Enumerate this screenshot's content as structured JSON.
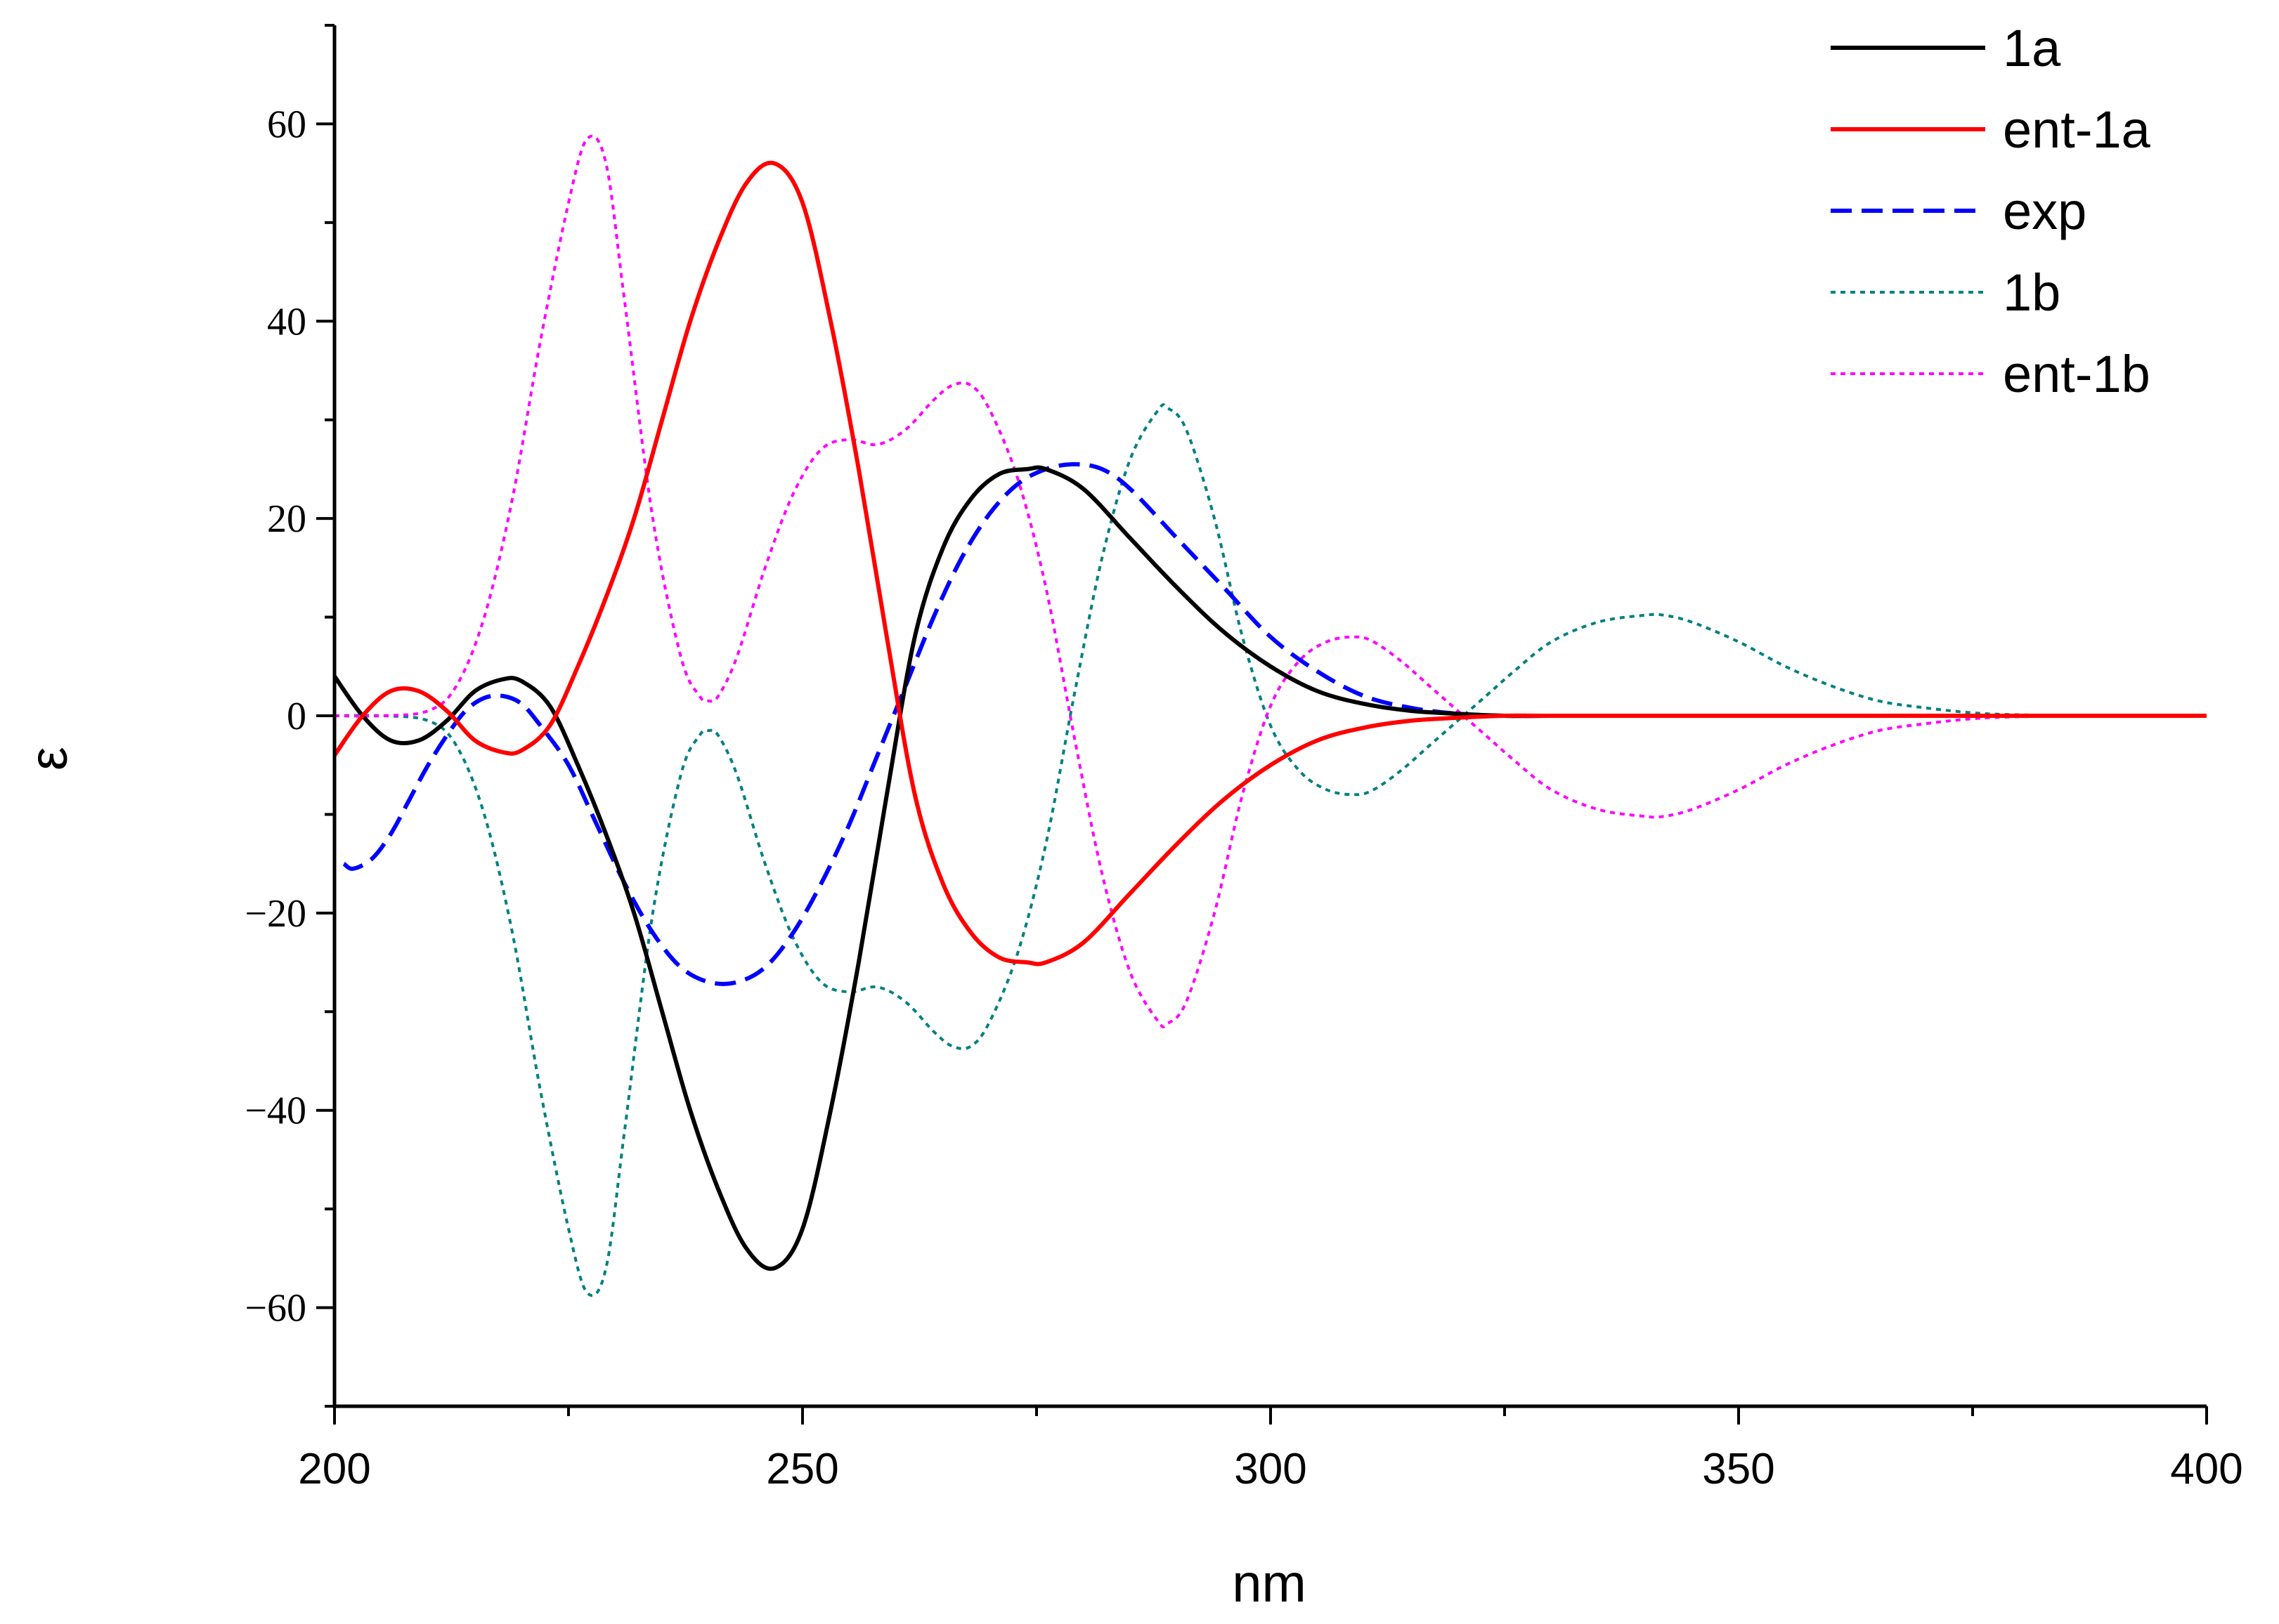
{
  "chart_data": {
    "type": "line",
    "title": "",
    "xlabel": "nm",
    "ylabel": "ε",
    "xlim": [
      200,
      400
    ],
    "ylim": [
      -70,
      70
    ],
    "xticks": [
      200,
      250,
      300,
      350,
      400
    ],
    "xtick_labels": [
      "200",
      "250",
      "300",
      "350",
      "400"
    ],
    "yticks": [
      -60,
      -40,
      -20,
      0,
      20,
      40,
      60
    ],
    "ytick_labels": [
      "−60",
      "−40",
      "−20",
      "0",
      "20",
      "40",
      "60"
    ],
    "grid": false,
    "legend_position": "top-right",
    "series": [
      {
        "name": "1a",
        "color": "#000000",
        "style": "solid",
        "x": [
          200,
          203,
          206,
          209,
          212,
          215,
          218,
          220,
          223,
          226,
          229,
          232,
          235,
          238,
          241,
          244,
          247,
          250,
          253,
          256,
          259,
          262,
          265,
          268,
          271,
          274,
          276,
          280,
          285,
          290,
          295,
          300,
          305,
          310,
          315,
          320,
          325,
          330,
          340,
          350,
          370,
          400
        ],
        "y": [
          4,
          0,
          -2.5,
          -2.5,
          -0.5,
          2.5,
          3.7,
          3.5,
          1,
          -5,
          -12,
          -20,
          -30,
          -40,
          -48,
          -54,
          -56,
          -52,
          -40,
          -25,
          -8,
          8,
          17,
          22,
          24.5,
          25,
          25,
          23,
          18,
          13,
          8.5,
          5,
          2.5,
          1.2,
          0.5,
          0.2,
          0,
          0,
          0,
          0,
          0,
          0
        ]
      },
      {
        "name": "ent-1a",
        "color": "#ff0000",
        "style": "solid",
        "x": [
          200,
          203,
          206,
          209,
          212,
          215,
          218,
          220,
          223,
          226,
          229,
          232,
          235,
          238,
          241,
          244,
          247,
          250,
          253,
          256,
          259,
          262,
          265,
          268,
          271,
          274,
          276,
          280,
          285,
          290,
          295,
          300,
          305,
          310,
          315,
          320,
          325,
          330,
          340,
          350,
          370,
          400
        ],
        "y": [
          -4,
          0,
          2.5,
          2.5,
          0.5,
          -2.5,
          -3.7,
          -3.5,
          -1,
          5,
          12,
          20,
          30,
          40,
          48,
          54,
          56,
          52,
          40,
          25,
          8,
          -8,
          -17,
          -22,
          -24.5,
          -25,
          -25,
          -23,
          -18,
          -13,
          -8.5,
          -5,
          -2.5,
          -1.2,
          -0.5,
          -0.2,
          0,
          0,
          0,
          0,
          0,
          0
        ]
      },
      {
        "name": "exp",
        "color": "#0000ff",
        "style": "dashed",
        "x": [
          201,
          202,
          204,
          206,
          208,
          210,
          212,
          214,
          216,
          218,
          220,
          222,
          225,
          228,
          231,
          234,
          237,
          240,
          243,
          246,
          249,
          252,
          255,
          258,
          261,
          264,
          267,
          270,
          273,
          276,
          279,
          282,
          285,
          290,
          295,
          300,
          305,
          310,
          315,
          320,
          325,
          330,
          340,
          350,
          370,
          400
        ],
        "y": [
          -15,
          -15.5,
          -14.5,
          -12,
          -8.5,
          -5,
          -2,
          0.5,
          1.8,
          2,
          1.2,
          -1,
          -5,
          -11,
          -17,
          -22,
          -25.5,
          -27,
          -27,
          -25.5,
          -22,
          -17,
          -11,
          -4,
          3,
          10,
          16,
          20.5,
          23.5,
          25,
          25.5,
          25,
          23,
          18,
          13,
          8,
          4.5,
          2,
          0.8,
          0.2,
          0,
          0,
          0,
          0,
          0,
          0
        ]
      },
      {
        "name": "1b",
        "color": "#008080",
        "style": "dotted",
        "x": [
          200,
          205,
          210,
          213,
          216,
          219,
          222,
          225,
          227,
          229,
          231,
          234,
          237,
          239,
          240,
          241,
          243,
          246,
          249,
          252,
          255,
          258,
          261,
          264,
          266,
          268,
          270,
          273,
          276,
          279,
          282,
          285,
          288,
          289,
          291,
          294,
          297,
          300,
          303,
          306,
          309,
          311,
          314,
          317,
          320,
          323,
          326,
          330,
          335,
          340,
          342,
          345,
          350,
          355,
          360,
          365,
          370,
          375,
          380,
          390,
          400
        ],
        "y": [
          0,
          0,
          -0.5,
          -3,
          -10,
          -22,
          -38,
          -52,
          -58.5,
          -56,
          -42,
          -20,
          -6,
          -2,
          -1.5,
          -2,
          -6,
          -15,
          -22.5,
          -27,
          -28,
          -27.5,
          -29,
          -32,
          -33.5,
          -33.5,
          -31,
          -24,
          -13,
          2,
          16,
          26,
          31,
          31.2,
          29,
          20,
          8,
          -1,
          -5.5,
          -7.5,
          -8,
          -7.5,
          -5.5,
          -3,
          -0.5,
          2,
          4.5,
          7.5,
          9.5,
          10.2,
          10.2,
          9.5,
          7.5,
          5,
          3,
          1.5,
          0.8,
          0.3,
          0.1,
          0,
          0
        ]
      },
      {
        "name": "ent-1b",
        "color": "#ff00ff",
        "style": "dotted",
        "x": [
          200,
          205,
          210,
          213,
          216,
          219,
          222,
          225,
          227,
          229,
          231,
          234,
          237,
          239,
          240,
          241,
          243,
          246,
          249,
          252,
          255,
          258,
          261,
          264,
          266,
          268,
          270,
          273,
          276,
          279,
          282,
          285,
          288,
          289,
          291,
          294,
          297,
          300,
          303,
          306,
          309,
          311,
          314,
          317,
          320,
          323,
          326,
          330,
          335,
          340,
          342,
          345,
          350,
          355,
          360,
          365,
          370,
          375,
          380,
          390,
          400
        ],
        "y": [
          0,
          0,
          0.5,
          3,
          10,
          22,
          38,
          52,
          58.5,
          56,
          42,
          20,
          6,
          2,
          1.5,
          2,
          6,
          15,
          22.5,
          27,
          28,
          27.5,
          29,
          32,
          33.5,
          33.5,
          31,
          24,
          13,
          -2,
          -16,
          -26,
          -31,
          -31.2,
          -29,
          -20,
          -8,
          1,
          5.5,
          7.5,
          8,
          7.5,
          5.5,
          3,
          0.5,
          -2,
          -4.5,
          -7.5,
          -9.5,
          -10.2,
          -10.2,
          -9.5,
          -7.5,
          -5,
          -3,
          -1.5,
          -0.8,
          -0.3,
          -0.1,
          0,
          0
        ]
      }
    ]
  }
}
